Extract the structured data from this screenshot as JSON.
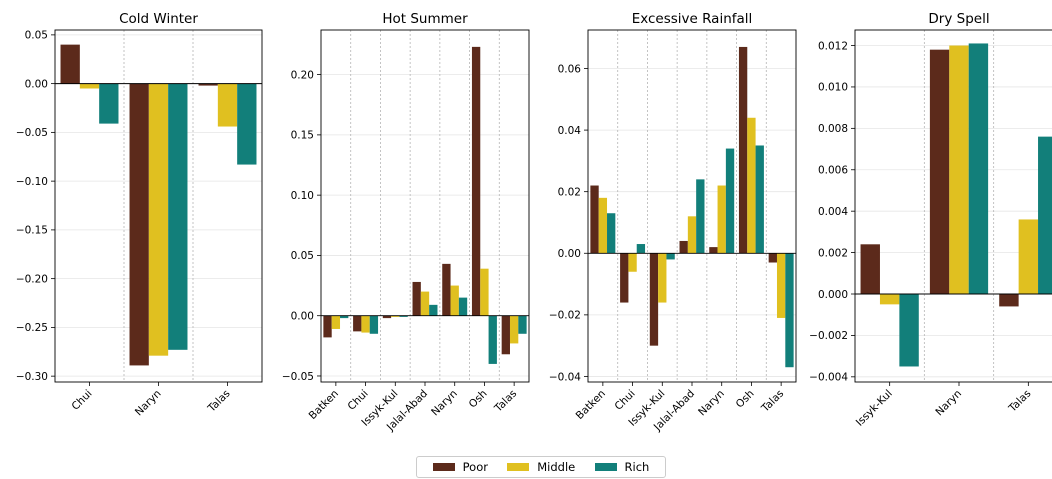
{
  "colors": {
    "Poor": "#5c2a1b",
    "Middle": "#e0c020",
    "Rich": "#127f7a"
  },
  "legend": {
    "items": [
      "Poor",
      "Middle",
      "Rich"
    ]
  },
  "chart_data": [
    {
      "type": "bar",
      "title": "Cold Winter",
      "categories": [
        "Chui",
        "Naryn",
        "Talas"
      ],
      "series": [
        {
          "name": "Poor",
          "values": [
            0.04,
            -0.289,
            -0.002
          ]
        },
        {
          "name": "Middle",
          "values": [
            -0.005,
            -0.279,
            -0.044
          ]
        },
        {
          "name": "Rich",
          "values": [
            -0.041,
            -0.273,
            -0.083
          ]
        }
      ],
      "yticks": [
        0.05,
        0.0,
        -0.05,
        -0.1,
        -0.15,
        -0.2,
        -0.25,
        -0.3
      ],
      "ytick_labels": [
        "0.05",
        "0.00",
        "−0.05",
        "−0.10",
        "−0.15",
        "−0.20",
        "−0.25",
        "−0.30"
      ],
      "ylim": [
        -0.306,
        0.055
      ],
      "grid": true
    },
    {
      "type": "bar",
      "title": "Hot Summer",
      "categories": [
        "Batken",
        "Chui",
        "Issyk-Kul",
        "Jalal-Abad",
        "Naryn",
        "Osh",
        "Talas"
      ],
      "series": [
        {
          "name": "Poor",
          "values": [
            -0.018,
            -0.013,
            -0.002,
            0.028,
            0.043,
            0.223,
            -0.032
          ]
        },
        {
          "name": "Middle",
          "values": [
            -0.011,
            -0.014,
            -0.001,
            0.02,
            0.025,
            0.039,
            -0.023
          ]
        },
        {
          "name": "Rich",
          "values": [
            -0.002,
            -0.015,
            -0.001,
            0.009,
            0.015,
            -0.04,
            -0.015
          ]
        }
      ],
      "yticks": [
        0.2,
        0.15,
        0.1,
        0.05,
        0.0,
        -0.05
      ],
      "ytick_labels": [
        "0.20",
        "0.15",
        "0.10",
        "0.05",
        "0.00",
        "−0.05"
      ],
      "ylim": [
        -0.055,
        0.237
      ],
      "grid": true
    },
    {
      "type": "bar",
      "title": "Excessive Rainfall",
      "categories": [
        "Batken",
        "Chui",
        "Issyk-Kul",
        "Jalal-Abad",
        "Naryn",
        "Osh",
        "Talas"
      ],
      "series": [
        {
          "name": "Poor",
          "values": [
            0.022,
            -0.016,
            -0.03,
            0.004,
            0.002,
            0.067,
            -0.003
          ]
        },
        {
          "name": "Middle",
          "values": [
            0.018,
            -0.006,
            -0.016,
            0.012,
            0.022,
            0.044,
            -0.021
          ]
        },
        {
          "name": "Rich",
          "values": [
            0.013,
            0.003,
            -0.002,
            0.024,
            0.034,
            0.035,
            -0.037
          ]
        }
      ],
      "yticks": [
        0.06,
        0.04,
        0.02,
        0.0,
        -0.02,
        -0.04
      ],
      "ytick_labels": [
        "0.06",
        "0.04",
        "0.02",
        "0.00",
        "−0.02",
        "−0.04"
      ],
      "ylim": [
        -0.0418,
        0.0725
      ],
      "grid": true
    },
    {
      "type": "bar",
      "title": "Dry Spell",
      "categories": [
        "Issyk-Kul",
        "Naryn",
        "Talas"
      ],
      "series": [
        {
          "name": "Poor",
          "values": [
            0.0024,
            0.0118,
            -0.0006
          ]
        },
        {
          "name": "Middle",
          "values": [
            -0.0005,
            0.012,
            0.0036
          ]
        },
        {
          "name": "Rich",
          "values": [
            -0.0035,
            0.0121,
            0.0076
          ]
        }
      ],
      "yticks": [
        0.012,
        0.01,
        0.008,
        0.006,
        0.004,
        0.002,
        0.0,
        -0.002,
        -0.004
      ],
      "ytick_labels": [
        "0.012",
        "0.010",
        "0.008",
        "0.006",
        "0.004",
        "0.002",
        "0.000",
        "−0.002",
        "−0.004"
      ],
      "ylim": [
        -0.00425,
        0.01275
      ],
      "grid": true
    }
  ]
}
